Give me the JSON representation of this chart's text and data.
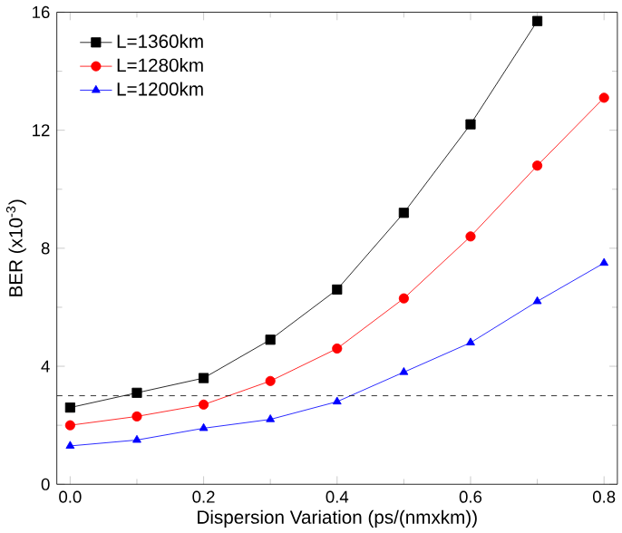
{
  "chart_data": {
    "type": "line",
    "xlabel": "Dispersion Variation (ps/(nmxkm))",
    "ylabel": "BER (x10$^{-3}$)",
    "x": [
      0.0,
      0.1,
      0.2,
      0.3,
      0.4,
      0.5,
      0.6,
      0.7,
      0.8
    ],
    "series": [
      {
        "name": "L=1360km",
        "color": "#000000",
        "marker": "square",
        "values": [
          2.6,
          3.1,
          3.6,
          4.9,
          6.6,
          9.2,
          12.2,
          15.7,
          null
        ]
      },
      {
        "name": "L=1280km",
        "color": "#ff0000",
        "marker": "circle",
        "values": [
          2.0,
          2.3,
          2.7,
          3.5,
          4.6,
          6.3,
          8.4,
          10.8,
          13.1
        ]
      },
      {
        "name": "L=1200km",
        "color": "#0000ff",
        "marker": "triangle",
        "values": [
          1.3,
          1.5,
          1.9,
          2.2,
          2.8,
          3.8,
          4.8,
          6.2,
          7.5
        ]
      }
    ],
    "xlim": [
      -0.02,
      0.82
    ],
    "ylim": [
      0,
      16
    ],
    "xticks": [
      {
        "value": 0.0,
        "label": "0.0"
      },
      {
        "value": 0.2,
        "label": "0.2"
      },
      {
        "value": 0.4,
        "label": "0.4"
      },
      {
        "value": 0.6,
        "label": "0.6"
      },
      {
        "value": 0.8,
        "label": "0.8"
      }
    ],
    "yticks": [
      0,
      4,
      8,
      12,
      16
    ],
    "ref_lines": [
      {
        "axis": "y",
        "value": 3.0,
        "color": "#000000",
        "line_style": "dashed"
      }
    ],
    "grid": false,
    "legend": "top left"
  }
}
